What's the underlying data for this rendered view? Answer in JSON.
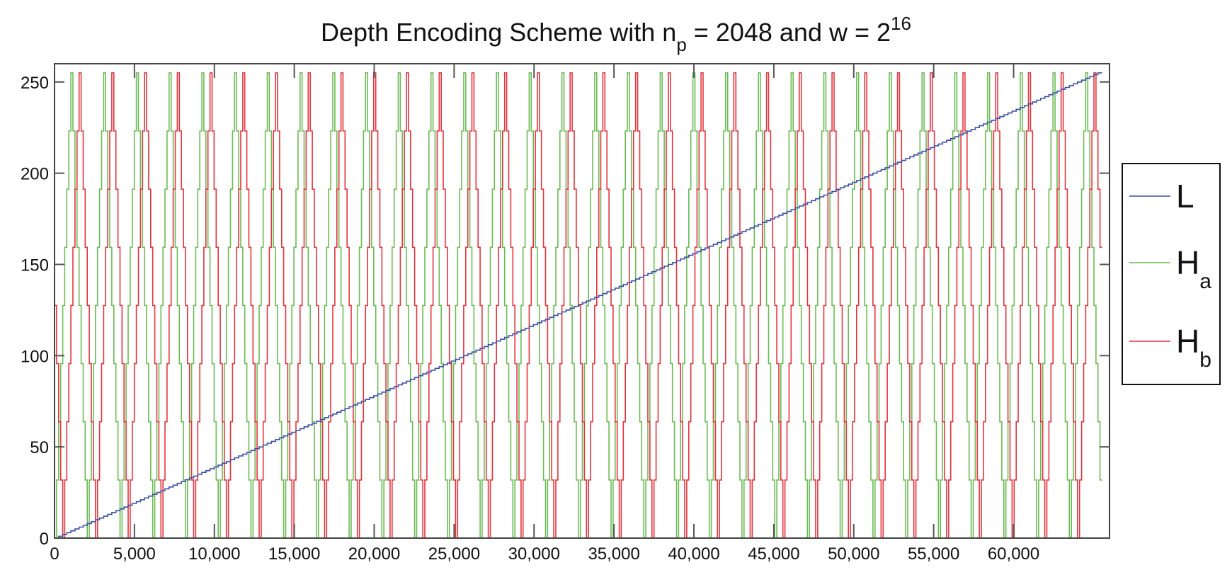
{
  "chart_data": {
    "type": "line",
    "title": {
      "prefix": "Depth Encoding Scheme with n",
      "prefix_sub": "p",
      "middle": " = 2048 and w = 2",
      "suffix_sup": "16"
    },
    "xlabel": "",
    "ylabel": "",
    "xlim": [
      0,
      66000
    ],
    "ylim": [
      0,
      260
    ],
    "x_ticks": [
      0,
      5000,
      10000,
      15000,
      20000,
      25000,
      30000,
      35000,
      40000,
      45000,
      50000,
      55000,
      60000
    ],
    "x_tick_labels": [
      "0",
      "5,000",
      "10,000",
      "15,000",
      "20,000",
      "25,000",
      "30,000",
      "35,000",
      "40,000",
      "45,000",
      "50,000",
      "55,000",
      "60,000"
    ],
    "y_ticks": [
      0,
      50,
      100,
      150,
      200,
      250
    ],
    "y_tick_labels": [
      "0",
      "50",
      "100",
      "150",
      "200",
      "250"
    ],
    "grid": false,
    "legend_position": "right-outside",
    "x_domain": [
      0,
      65535
    ],
    "series": [
      {
        "name": "L",
        "label": "L",
        "label_sub": "",
        "color": "#3b4f9e",
        "shape": "staircase",
        "step": 256,
        "min": 0,
        "max": 255
      },
      {
        "name": "Ha",
        "label": "H",
        "label_sub": "a",
        "color": "#6cbb55",
        "shape": "triangle",
        "period": 2048,
        "min": 0,
        "max": 255,
        "phase": 0,
        "quantization": 128
      },
      {
        "name": "Hb",
        "label": "H",
        "label_sub": "b",
        "color": "#e2343e",
        "shape": "triangle",
        "period": 2048,
        "min": 0,
        "max": 255,
        "phase": 1536,
        "quantization": 128
      }
    ]
  }
}
